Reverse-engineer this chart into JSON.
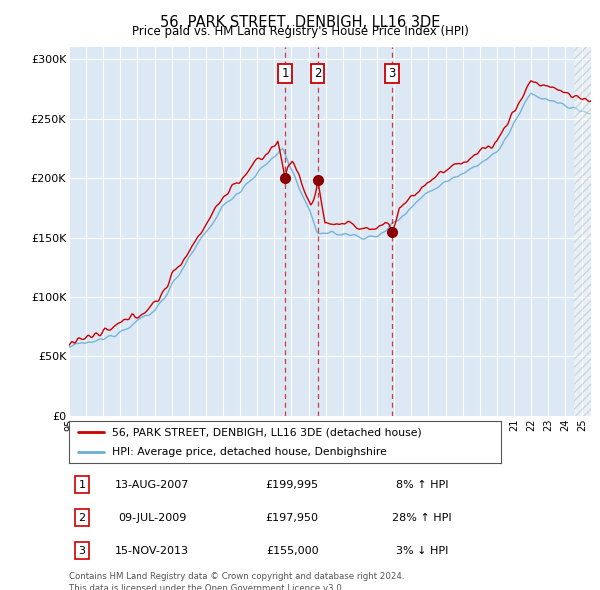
{
  "title": "56, PARK STREET, DENBIGH, LL16 3DE",
  "subtitle": "Price paid vs. HM Land Registry's House Price Index (HPI)",
  "red_label": "56, PARK STREET, DENBIGH, LL16 3DE (detached house)",
  "blue_label": "HPI: Average price, detached house, Denbighshire",
  "transactions": [
    {
      "num": 1,
      "date": "13-AUG-2007",
      "price": 199995,
      "pct": "8%",
      "dir": "↑",
      "year": 2007.62
    },
    {
      "num": 2,
      "date": "09-JUL-2009",
      "price": 197950,
      "pct": "28%",
      "dir": "↑",
      "year": 2009.52
    },
    {
      "num": 3,
      "date": "15-NOV-2013",
      "price": 155000,
      "pct": "3%",
      "dir": "↓",
      "year": 2013.87
    }
  ],
  "ylim": [
    0,
    310000
  ],
  "yticks": [
    0,
    50000,
    100000,
    150000,
    200000,
    250000,
    300000
  ],
  "ytick_labels": [
    "£0",
    "£50K",
    "£100K",
    "£150K",
    "£200K",
    "£250K",
    "£300K"
  ],
  "background_color": "#dce9f5",
  "footnote1": "Contains HM Land Registry data © Crown copyright and database right 2024.",
  "footnote2": "This data is licensed under the Open Government Licence v3.0."
}
